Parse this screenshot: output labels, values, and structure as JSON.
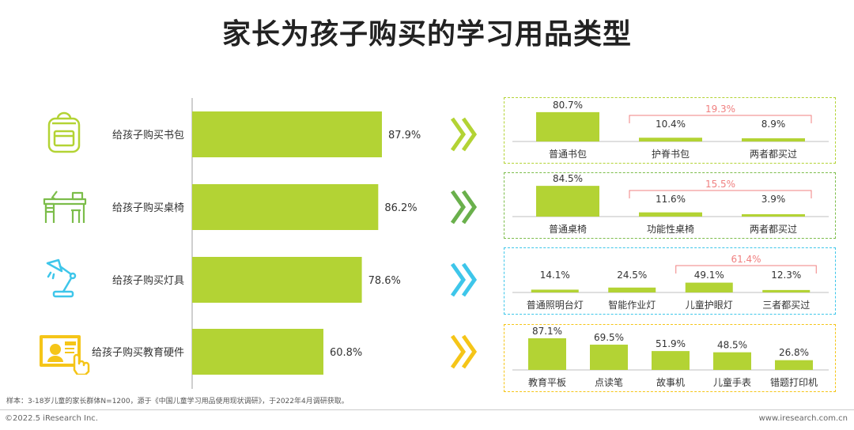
{
  "title": "家长为孩子购买的学习用品类型",
  "colors": {
    "bar": "#b3d334",
    "axis": "#bfbfbf",
    "bracket": "#f08080",
    "text": "#333333",
    "panel1": "#b3d334",
    "panel2": "#7cbd4a",
    "panel3": "#3ec6ea",
    "panel4": "#f5c518",
    "chev1": "#b3d334",
    "chev2": "#6ab04c",
    "chev3": "#3ec6ea",
    "chev4": "#f5c518"
  },
  "icons": [
    "backpack-icon",
    "desk-chair-icon",
    "desk-lamp-icon",
    "education-tablet-icon"
  ],
  "chart_data": {
    "type": "bar",
    "orientation": "horizontal",
    "categories": [
      "给孩子购买书包",
      "给孩子购买桌椅",
      "给孩子购买灯具",
      "给孩子购买教育硬件"
    ],
    "values": [
      87.9,
      86.2,
      78.6,
      60.8
    ],
    "value_labels": [
      "87.9%",
      "86.2%",
      "78.6%",
      "60.8%"
    ],
    "xlim": [
      0,
      100
    ],
    "subcharts": [
      {
        "type": "bar",
        "categories": [
          "普通书包",
          "护脊书包",
          "两者都买过"
        ],
        "values": [
          80.7,
          10.4,
          8.9
        ],
        "value_labels": [
          "80.7%",
          "10.4%",
          "8.9%"
        ],
        "bracket": {
          "from": 1,
          "to": 2,
          "label": "19.3%"
        }
      },
      {
        "type": "bar",
        "categories": [
          "普通桌椅",
          "功能性桌椅",
          "两者都买过"
        ],
        "values": [
          84.5,
          11.6,
          3.9
        ],
        "value_labels": [
          "84.5%",
          "11.6%",
          "3.9%"
        ],
        "bracket": {
          "from": 1,
          "to": 2,
          "label": "15.5%"
        }
      },
      {
        "type": "bar",
        "categories": [
          "普通照明台灯",
          "智能作业灯",
          "儿童护眼灯",
          "三者都买过"
        ],
        "values": [
          14.1,
          24.5,
          49.1,
          12.3
        ],
        "value_labels": [
          "14.1%",
          "24.5%",
          "49.1%",
          "12.3%"
        ],
        "bracket": {
          "from": 2,
          "to": 3,
          "label": "61.4%"
        }
      },
      {
        "type": "bar",
        "categories": [
          "教育平板",
          "点读笔",
          "故事机",
          "儿童手表",
          "错题打印机"
        ],
        "values": [
          87.1,
          69.5,
          51.9,
          48.5,
          26.8
        ],
        "value_labels": [
          "87.1%",
          "69.5%",
          "51.9%",
          "48.5%",
          "26.8%"
        ]
      }
    ]
  },
  "footnote": "样本：3-18岁儿童的家长群体N=1200，源于《中国儿童学习用品使用现状调研》，于2022年4月调研获取。",
  "copyright": "©2022.5 iResearch Inc.",
  "website": "www.iresearch.com.cn"
}
